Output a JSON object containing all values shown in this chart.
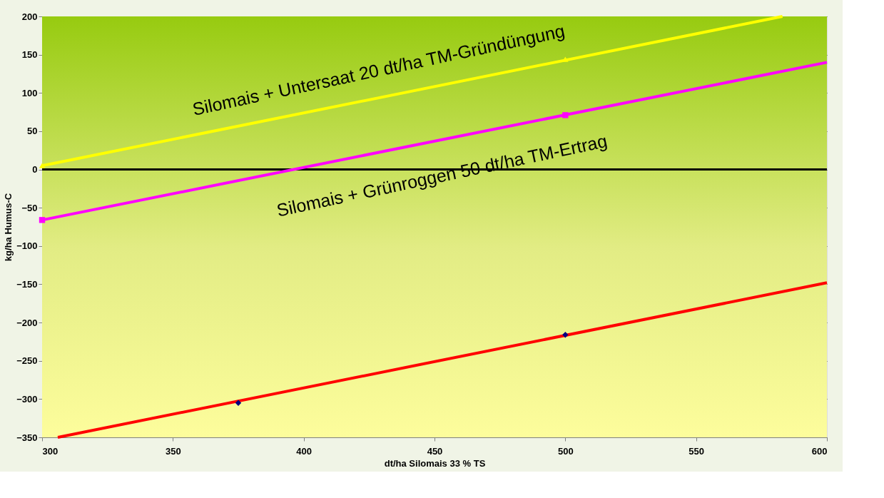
{
  "chart_data": {
    "type": "line",
    "xlabel": "dt/ha Silomais 33 % TS",
    "ylabel": "kg/ha Humus-C",
    "xlim": [
      300,
      600
    ],
    "xticks": [
      300,
      350,
      400,
      450,
      500,
      550,
      600
    ],
    "ylim": [
      -350,
      200
    ],
    "yticks": [
      -350,
      -300,
      -250,
      -200,
      -150,
      -100,
      -50,
      0,
      50,
      100,
      150,
      200
    ],
    "grid": "y",
    "ref_lines": [
      {
        "axis": "y",
        "value": 0,
        "color": "#000000"
      }
    ],
    "series": [
      {
        "name": "Silomais + Untersaat 20 dt/ha TM-Gründüngung",
        "color": "#ffff00",
        "x": [
          300,
          583
        ],
        "values": [
          5,
          200
        ],
        "marker": "none"
      },
      {
        "name": "Silomais + Grünroggen 50 dt/ha TM-Ertrag",
        "color": "#ff00ff",
        "x": [
          300,
          600
        ],
        "values": [
          -66,
          140
        ],
        "marker": "none"
      },
      {
        "color": "#ff0000",
        "x": [
          306,
          600
        ],
        "values": [
          -350,
          -148
        ],
        "marker": "none"
      },
      {
        "type": "scatter",
        "color": "#ffff00",
        "x": [
          300,
          500
        ],
        "values": [
          5,
          144
        ],
        "marker": "triangle"
      },
      {
        "type": "scatter",
        "color": "#ff00ff",
        "x": [
          300,
          500
        ],
        "values": [
          -66,
          71
        ],
        "marker": "square"
      },
      {
        "type": "scatter",
        "color": "#000080",
        "x": [
          375,
          500
        ],
        "values": [
          -305,
          -216
        ],
        "marker": "diamond"
      }
    ]
  }
}
